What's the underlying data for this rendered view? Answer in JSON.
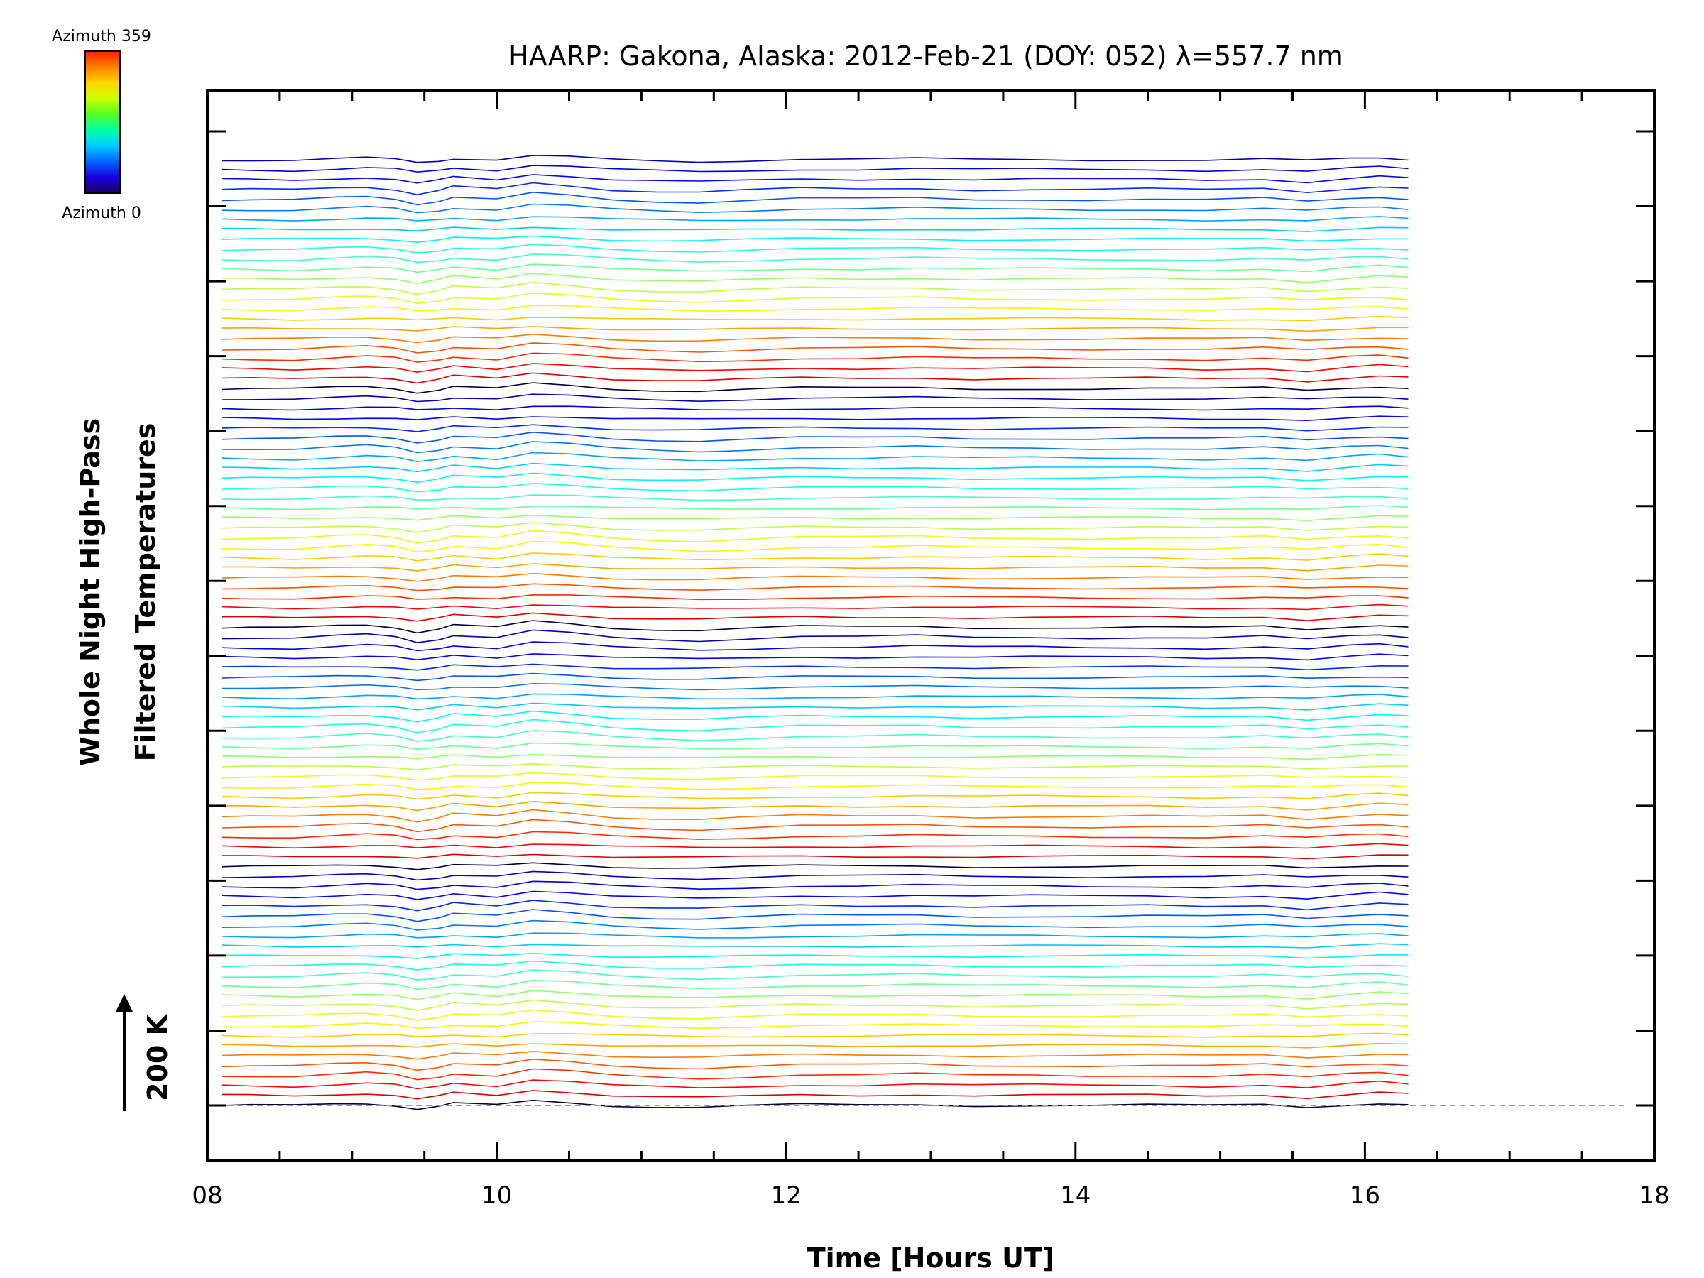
{
  "chart_data": {
    "type": "line",
    "title": "HAARP: Gakona,  Alaska: 2012-Feb-21 (DOY: 052) λ=557.7 nm",
    "xlabel": "Time [Hours UT]",
    "ylabel_line1": "Whole Night High-Pass",
    "ylabel_line2": "Filtered Temperatures",
    "scale_bar_label": "200 K",
    "xlim": [
      8,
      18
    ],
    "x_ticks": [
      "08",
      "10",
      "12",
      "14",
      "16",
      "18"
    ],
    "colorbar": {
      "top_label": "Azimuth 359",
      "bottom_label": "Azimuth 0",
      "colors": [
        "#ff1f00",
        "#ff7f00",
        "#ffd500",
        "#ccff00",
        "#55ff22",
        "#00ffaa",
        "#00ccff",
        "#0066ff",
        "#1a00dd",
        "#1a0066"
      ]
    },
    "n_traces": 96,
    "trace_x": [
      8.1,
      8.3,
      8.6,
      8.9,
      9.1,
      9.3,
      9.45,
      9.6,
      9.7,
      10.0,
      10.25,
      10.5,
      10.8,
      11.1,
      11.4,
      11.7,
      12.1,
      12.5,
      12.9,
      13.3,
      13.7,
      14.1,
      14.5,
      14.9,
      15.3,
      15.6,
      15.9,
      16.1,
      16.3
    ],
    "trace_y_kelvin": [
      0,
      0,
      -1,
      3,
      5,
      1,
      -8,
      -2,
      5,
      0,
      12,
      8,
      0,
      -3,
      -5,
      -2,
      2,
      1,
      3,
      0,
      1,
      0,
      1,
      -1,
      2,
      -4,
      3,
      6,
      2
    ],
    "y_tick_count": 14,
    "baseline": "dashed"
  }
}
